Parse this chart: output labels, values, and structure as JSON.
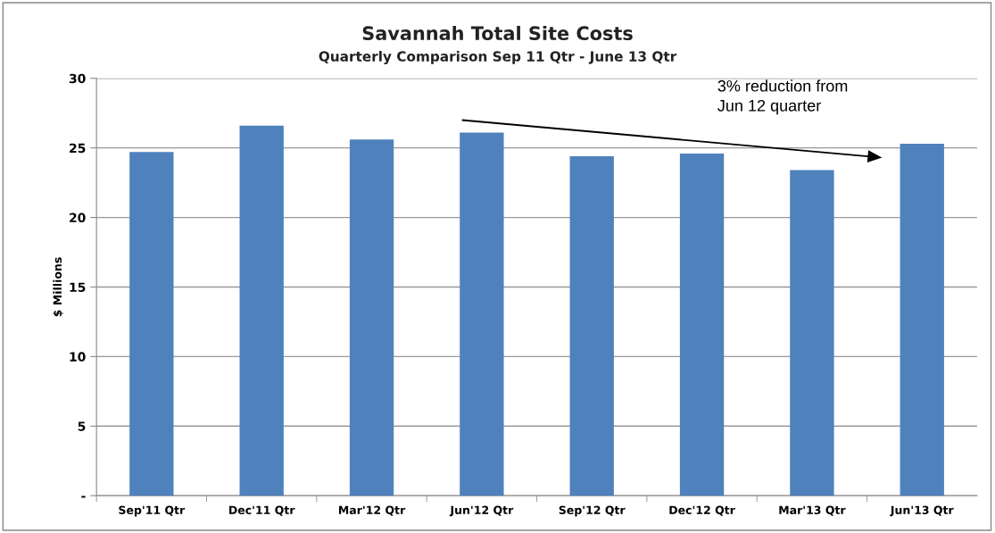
{
  "chart_data": {
    "type": "bar",
    "title": "Savannah Total Site Costs",
    "subtitle": "Quarterly Comparison Sep 11 Qtr - June 13 Qtr",
    "ylabel": "$ Millions",
    "categories": [
      "Sep'11 Qtr",
      "Dec'11 Qtr",
      "Mar'12 Qtr",
      "Jun'12 Qtr",
      "Sep'12 Qtr",
      "Dec'12 Qtr",
      "Mar'13 Qtr",
      "Jun'13 Qtr"
    ],
    "values": [
      24.7,
      26.6,
      25.6,
      26.1,
      24.4,
      24.6,
      23.4,
      25.3
    ],
    "color": "#4f81bd",
    "ylim": [
      0,
      30
    ],
    "yticks": [
      {
        "value": 0,
        "label": "-"
      },
      5,
      10,
      15,
      20,
      25,
      30
    ],
    "grid": "y",
    "legend": false,
    "annotations": [
      "3% reduction from\nJun 12 quarter"
    ]
  }
}
